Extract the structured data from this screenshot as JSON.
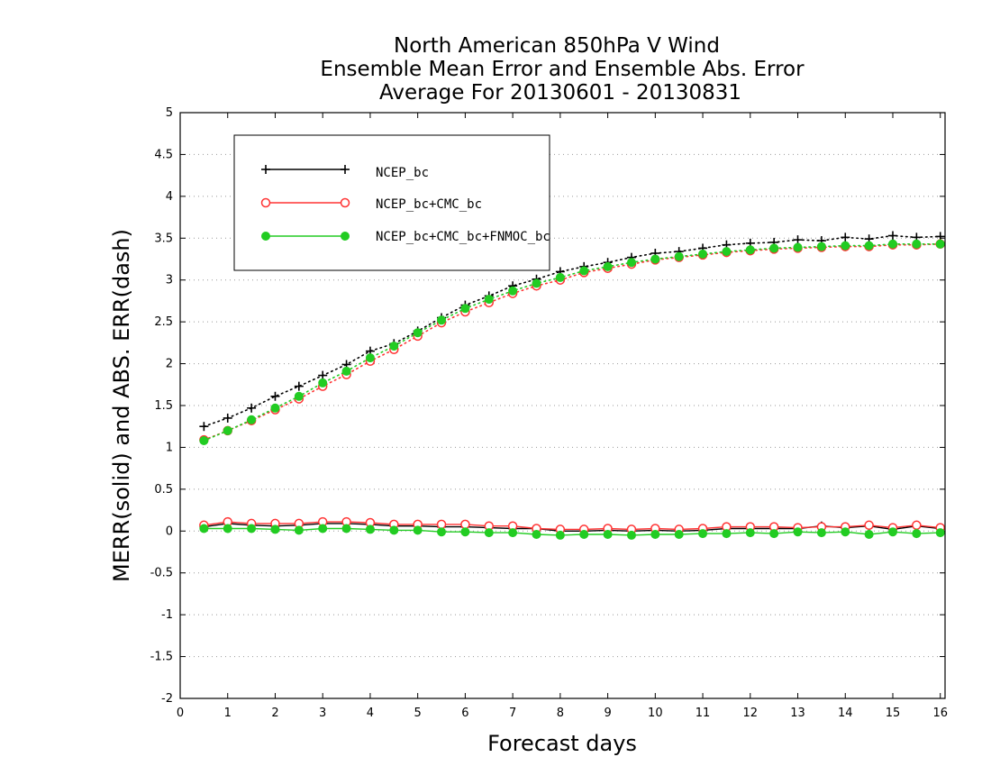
{
  "chart_data": {
    "type": "line",
    "title_lines": [
      "North American 850hPa V Wind",
      "Ensemble Mean Error and Ensemble Abs. Error",
      "Average For 20130601 - 20130831"
    ],
    "xlabel": "Forecast days",
    "ylabel": "MERR(solid) and ABS. ERR(dash)",
    "xlim": [
      0,
      16.1
    ],
    "ylim": [
      -2,
      5
    ],
    "xticks": [
      "0",
      "1",
      "2",
      "3",
      "4",
      "5",
      "6",
      "7",
      "8",
      "9",
      "10",
      "11",
      "12",
      "13",
      "14",
      "15",
      "16"
    ],
    "yticks": [
      "5",
      "4.5",
      "4",
      "3.5",
      "3",
      "2.5",
      "2",
      "1.5",
      "1",
      "0.5",
      "0",
      "-0.5",
      "-1",
      "-1.5",
      "-2"
    ],
    "ytick_values": [
      5,
      4.5,
      4,
      3.5,
      3,
      2.5,
      2,
      1.5,
      1,
      0.5,
      0,
      -0.5,
      -1,
      -1.5,
      -2
    ],
    "grid": "horizontal dotted",
    "legend_position": "top-left",
    "x": [
      0.5,
      1,
      1.5,
      2,
      2.5,
      3,
      3.5,
      4,
      4.5,
      5,
      5.5,
      6,
      6.5,
      7,
      7.5,
      8,
      8.5,
      9,
      9.5,
      10,
      10.5,
      11,
      11.5,
      12,
      12.5,
      13,
      13.5,
      14,
      14.5,
      15,
      15.5,
      16
    ],
    "series": [
      {
        "name": "NCEP_bc",
        "color": "#000000",
        "marker": "plus",
        "abs_err": [
          1.25,
          1.35,
          1.47,
          1.61,
          1.73,
          1.86,
          1.99,
          2.15,
          2.24,
          2.39,
          2.55,
          2.7,
          2.81,
          2.93,
          3.01,
          3.1,
          3.16,
          3.21,
          3.27,
          3.32,
          3.34,
          3.38,
          3.42,
          3.44,
          3.45,
          3.48,
          3.47,
          3.51,
          3.49,
          3.53,
          3.51,
          3.52
        ],
        "mean_err": [
          0.05,
          0.09,
          0.07,
          0.06,
          0.07,
          0.09,
          0.09,
          0.08,
          0.06,
          0.06,
          0.05,
          0.05,
          0.04,
          0.03,
          0.03,
          0.0,
          0.0,
          0.01,
          0.0,
          0.01,
          0.0,
          0.01,
          0.03,
          0.03,
          0.03,
          0.03,
          0.06,
          0.04,
          0.06,
          0.02,
          0.06,
          0.03
        ]
      },
      {
        "name": "NCEP_bc+CMC_bc",
        "color": "#ff3333",
        "marker": "open-circle",
        "abs_err": [
          1.09,
          1.2,
          1.32,
          1.45,
          1.58,
          1.73,
          1.87,
          2.03,
          2.17,
          2.33,
          2.49,
          2.62,
          2.73,
          2.84,
          2.93,
          3.0,
          3.09,
          3.14,
          3.19,
          3.24,
          3.27,
          3.3,
          3.33,
          3.35,
          3.37,
          3.38,
          3.39,
          3.4,
          3.4,
          3.42,
          3.42,
          3.43
        ],
        "mean_err": [
          0.07,
          0.11,
          0.09,
          0.09,
          0.09,
          0.11,
          0.11,
          0.1,
          0.08,
          0.08,
          0.08,
          0.08,
          0.06,
          0.06,
          0.03,
          0.02,
          0.02,
          0.03,
          0.02,
          0.03,
          0.02,
          0.03,
          0.05,
          0.05,
          0.05,
          0.04,
          0.05,
          0.05,
          0.07,
          0.04,
          0.07,
          0.04
        ]
      },
      {
        "name": "NCEP_bc+CMC_bc+FNMOC_bc",
        "color": "#22cc22",
        "marker": "filled-circle",
        "abs_err": [
          1.08,
          1.2,
          1.33,
          1.47,
          1.61,
          1.77,
          1.91,
          2.07,
          2.21,
          2.37,
          2.52,
          2.66,
          2.77,
          2.87,
          2.96,
          3.03,
          3.11,
          3.16,
          3.21,
          3.25,
          3.28,
          3.31,
          3.34,
          3.36,
          3.38,
          3.39,
          3.4,
          3.41,
          3.41,
          3.43,
          3.43,
          3.43
        ],
        "mean_err": [
          0.03,
          0.03,
          0.03,
          0.02,
          0.01,
          0.03,
          0.03,
          0.02,
          0.01,
          0.01,
          -0.01,
          -0.01,
          -0.02,
          -0.02,
          -0.04,
          -0.05,
          -0.04,
          -0.04,
          -0.05,
          -0.04,
          -0.04,
          -0.03,
          -0.03,
          -0.02,
          -0.03,
          -0.01,
          -0.02,
          -0.01,
          -0.04,
          -0.01,
          -0.03,
          -0.02
        ]
      }
    ]
  }
}
